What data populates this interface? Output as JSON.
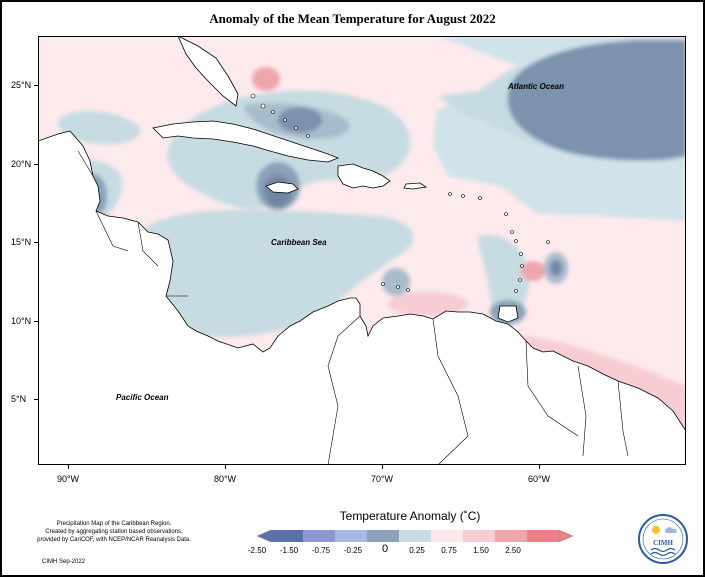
{
  "title": "Anomaly of the Mean Temperature for August 2022",
  "map": {
    "labels": {
      "atlantic": "Atlantic Ocean",
      "caribbean": "Caribbean Sea",
      "pacific": "Pacific Ocean"
    },
    "lat_labels": [
      "25°N",
      "20°N",
      "15°N",
      "10°N",
      "5°N"
    ],
    "lon_labels": [
      "90°W",
      "80°W",
      "70°W",
      "60°W"
    ]
  },
  "legend": {
    "title": "Temperature Anomaly (˚C)",
    "labels": [
      "-2.50",
      "-1.50",
      "-0.75",
      "-0.25",
      "0",
      "0.25",
      "0.75",
      "1.50",
      "2.50"
    ],
    "colors": [
      "#5a72a8",
      "#8c96cf",
      "#a9b7e6",
      "#8aa2b8",
      "#c6dbe2",
      "#fde8eb",
      "#f7cdd3",
      "#eea6ad",
      "#ee8088"
    ]
  },
  "credit": {
    "line1": "Precipitation Map of the Caribbean Region.",
    "line2": "Created by aggregating station based observations,",
    "line3": "provided by CariCOF, with NCEP/NCAR Reanalysis Data.",
    "line4": "CIMH Sep-2022"
  },
  "logo": {
    "text": "CIMH"
  }
}
